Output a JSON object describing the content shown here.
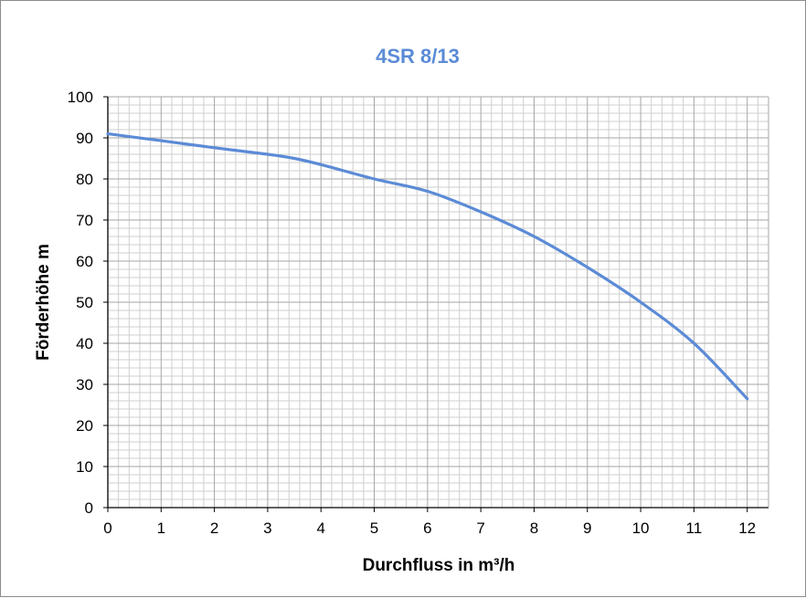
{
  "chart_data": {
    "type": "line",
    "title": "4SR 8/13",
    "xlabel": "Durchfluss  in m³/h",
    "ylabel": "Förderhöhe  m",
    "xlim": [
      0,
      12.4
    ],
    "ylim": [
      0,
      100
    ],
    "x_ticks": [
      "0",
      "1",
      "2",
      "3",
      "4",
      "5",
      "6",
      "7",
      "8",
      "9",
      "10",
      "11",
      "12"
    ],
    "y_ticks": [
      "0",
      "10",
      "20",
      "30",
      "40",
      "50",
      "60",
      "70",
      "80",
      "90",
      "100"
    ],
    "grid": true,
    "legend": "none",
    "series": [
      {
        "x": [
          0,
          1,
          2,
          3,
          3.5,
          4,
          5,
          6,
          7,
          8,
          9,
          10,
          11,
          12
        ],
        "values": [
          91,
          89.3,
          87.6,
          86,
          85,
          83.5,
          80,
          77,
          72,
          66,
          58.5,
          50,
          40,
          26.5
        ]
      }
    ],
    "colors": {
      "line": "#5B8BD6",
      "title": "#5B8BD6",
      "grid": "#a6a6a6",
      "axis": "#000000"
    }
  }
}
